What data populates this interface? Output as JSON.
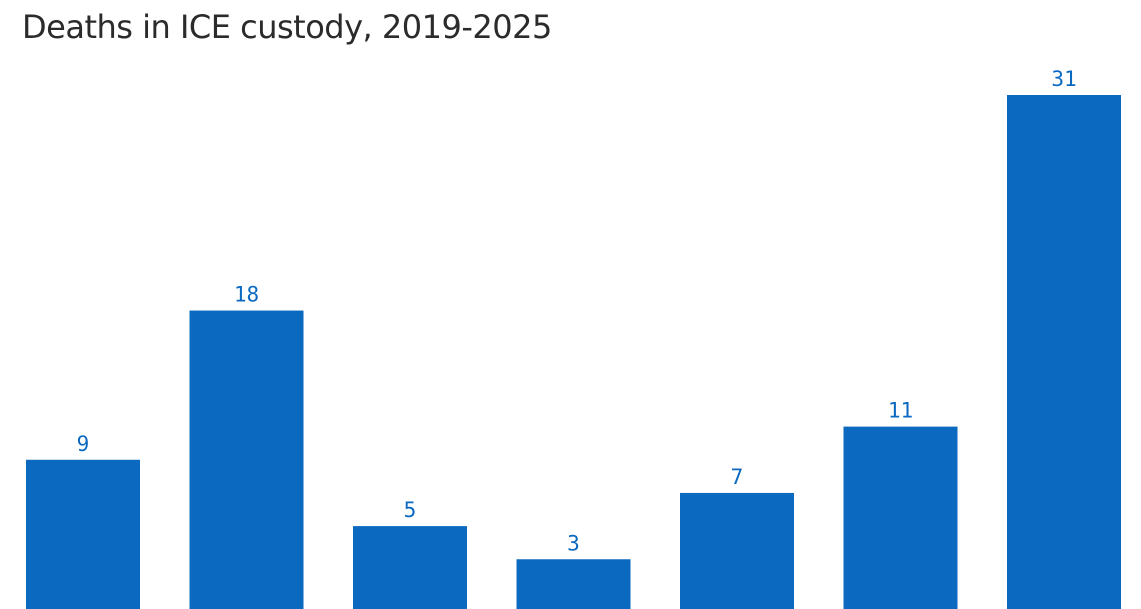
{
  "chart_data": {
    "type": "bar",
    "title": "Deaths in ICE custody, 2019-2025",
    "values": [
      9,
      18,
      5,
      3,
      7,
      11,
      31
    ],
    "color": "#0c69c0"
  }
}
